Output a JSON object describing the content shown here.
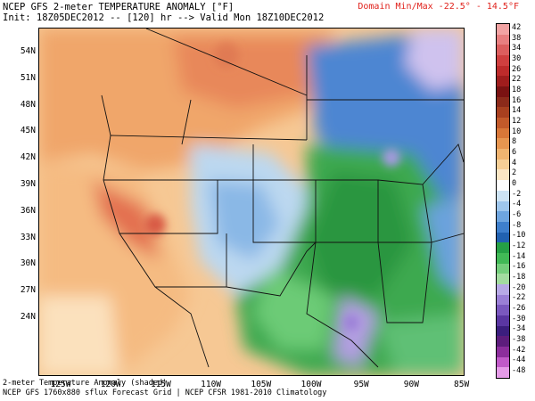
{
  "header": {
    "title": "NCEP GFS 2-meter TEMPERATURE ANOMALY [°F]",
    "init": "Init: 18Z05DEC2012 -- [120] hr --> Valid Mon 18Z10DEC2012",
    "domain": "Domain Min/Max -22.5° - 14.5°F"
  },
  "axes": {
    "lat_labels": [
      "54N",
      "51N",
      "48N",
      "45N",
      "42N",
      "39N",
      "36N",
      "33N",
      "30N",
      "27N",
      "24N"
    ],
    "lon_labels": [
      "125W",
      "120W",
      "115W",
      "110W",
      "105W",
      "100W",
      "95W",
      "90W",
      "85W"
    ]
  },
  "footer": {
    "line1": "2-meter Temperature Anomaly (shaded)",
    "line2": "NCEP GFS 1760x880 sflux Forecast Grid | NCEP CFSR 1981-2010 Climatology"
  },
  "legend": {
    "labels": [
      "42",
      "38",
      "34",
      "30",
      "26",
      "22",
      "18",
      "16",
      "14",
      "12",
      "10",
      "8",
      "6",
      "4",
      "2",
      "0",
      "-2",
      "-4",
      "-6",
      "-8",
      "-10",
      "-12",
      "-14",
      "-16",
      "-18",
      "-20",
      "-22",
      "-26",
      "-30",
      "-34",
      "-38",
      "-42",
      "-44",
      "-48"
    ],
    "colors": [
      "#f2a3a3",
      "#e87f80",
      "#dc5e5e",
      "#cf3f3f",
      "#bd2b2b",
      "#9f1d1d",
      "#7a1212",
      "#8c2a1a",
      "#a8401f",
      "#c25a2a",
      "#d87738",
      "#e79650",
      "#f0b470",
      "#f6cf96",
      "#fbe6c4",
      "#ffffff",
      "#cde3f4",
      "#9ec6ec",
      "#6ea5df",
      "#3e7fcc",
      "#2161b0",
      "#25a045",
      "#41b956",
      "#74ce7c",
      "#a3dca0",
      "#b7a9e6",
      "#9a7fd6",
      "#7a58bf",
      "#5a36a2",
      "#3b1e7e",
      "#5d1d7c",
      "#8c2e9c",
      "#c05ac8",
      "#e59be8"
    ]
  }
}
